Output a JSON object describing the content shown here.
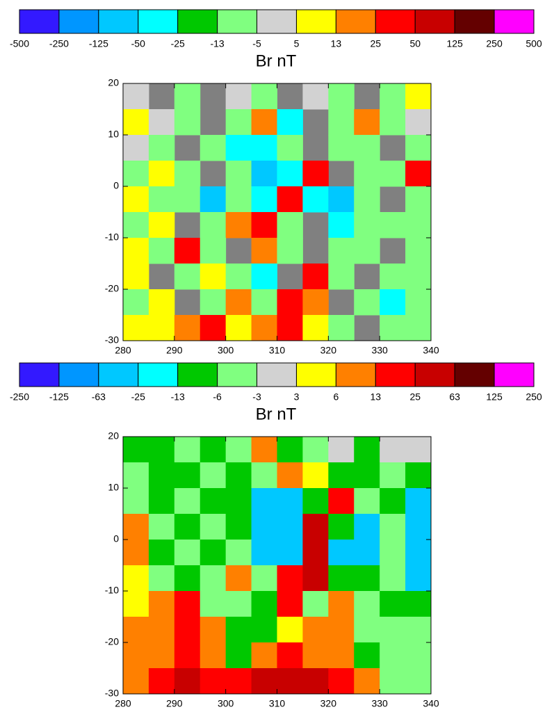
{
  "chart_data": [
    {
      "type": "heatmap",
      "title": "Br nT",
      "colorbar": {
        "boundaries": [
          -500,
          -250,
          -125,
          -50,
          -25,
          -13,
          -5,
          5,
          13,
          25,
          50,
          125,
          250,
          500
        ],
        "colors": [
          "#3319ff",
          "#0096ff",
          "#00c8ff",
          "#00ffff",
          "#00c800",
          "#80ff80",
          "#d2d2d2",
          "#ffff00",
          "#ff8000",
          "#ff0000",
          "#c80000",
          "#640000",
          "#ff00ff"
        ]
      },
      "missing_color": "#808080",
      "xlim": [
        280,
        340
      ],
      "ylim": [
        -30,
        20
      ],
      "xticks": [
        280,
        290,
        300,
        310,
        320,
        330,
        340
      ],
      "yticks": [
        20,
        10,
        0,
        -10,
        -20,
        -30
      ],
      "z": [
        [
          0,
          null,
          -8,
          null,
          0,
          -8,
          null,
          0,
          -8,
          null,
          -8,
          8
        ],
        [
          8,
          0,
          -8,
          null,
          -8,
          20,
          -30,
          null,
          -8,
          15,
          -8,
          0
        ],
        [
          0,
          -8,
          null,
          -8,
          -30,
          -30,
          -8,
          null,
          -8,
          -8,
          null,
          -8
        ],
        [
          -8,
          8,
          -8,
          null,
          -8,
          -60,
          -30,
          40,
          null,
          -8,
          -8,
          30
        ],
        [
          8,
          -8,
          -8,
          -60,
          -8,
          -30,
          30,
          -30,
          -60,
          -8,
          null,
          -8
        ],
        [
          -8,
          8,
          null,
          -8,
          20,
          40,
          -8,
          null,
          -30,
          -8,
          -8,
          -8
        ],
        [
          8,
          -8,
          30,
          -8,
          null,
          20,
          -8,
          null,
          -8,
          -8,
          null,
          -8
        ],
        [
          8,
          null,
          -8,
          8,
          -8,
          -30,
          null,
          30,
          -8,
          null,
          -8,
          -8
        ],
        [
          -8,
          8,
          null,
          -8,
          20,
          -8,
          40,
          20,
          null,
          -8,
          -30,
          -8
        ],
        [
          8,
          8,
          20,
          40,
          8,
          20,
          40,
          8,
          -8,
          null,
          -8,
          -8
        ]
      ]
    },
    {
      "type": "heatmap",
      "title": "Br nT",
      "colorbar": {
        "boundaries": [
          -250,
          -125,
          -63,
          -25,
          -13,
          -6,
          -3,
          3,
          6,
          13,
          25,
          63,
          125,
          250
        ],
        "colors": [
          "#3319ff",
          "#0096ff",
          "#00c8ff",
          "#00ffff",
          "#00c800",
          "#80ff80",
          "#d2d2d2",
          "#ffff00",
          "#ff8000",
          "#ff0000",
          "#c80000",
          "#640000",
          "#ff00ff"
        ]
      },
      "missing_color": "#808080",
      "xlim": [
        280,
        340
      ],
      "ylim": [
        -30,
        20
      ],
      "xticks": [
        280,
        290,
        300,
        310,
        320,
        330,
        340
      ],
      "yticks": [
        20,
        10,
        0,
        -10,
        -20,
        -30
      ],
      "z": [
        [
          -8,
          -8,
          -4,
          -8,
          -4,
          8,
          -8,
          -4,
          0,
          -8,
          0,
          0
        ],
        [
          -4,
          -8,
          -8,
          -4,
          -8,
          -4,
          8,
          4,
          -8,
          -8,
          -4,
          -8
        ],
        [
          -4,
          -8,
          -4,
          -8,
          -8,
          -40,
          -40,
          -8,
          20,
          -4,
          -8,
          -40
        ],
        [
          8,
          -4,
          -8,
          -4,
          -8,
          -40,
          -40,
          30,
          -8,
          -40,
          -4,
          -40
        ],
        [
          8,
          -8,
          -4,
          -8,
          -4,
          -40,
          -40,
          30,
          -40,
          -40,
          -4,
          -40
        ],
        [
          4,
          -4,
          -8,
          -4,
          8,
          -4,
          20,
          30,
          -8,
          -8,
          -4,
          -40
        ],
        [
          4,
          10,
          20,
          -4,
          -4,
          -8,
          20,
          -4,
          8,
          -4,
          -8,
          -8
        ],
        [
          8,
          8,
          20,
          8,
          -8,
          -8,
          4,
          10,
          8,
          -4,
          -4,
          -4
        ],
        [
          8,
          10,
          20,
          10,
          -8,
          8,
          20,
          10,
          8,
          -8,
          -4,
          -4
        ],
        [
          8,
          20,
          30,
          20,
          20,
          30,
          30,
          30,
          20,
          8,
          -4,
          -4
        ]
      ]
    }
  ]
}
